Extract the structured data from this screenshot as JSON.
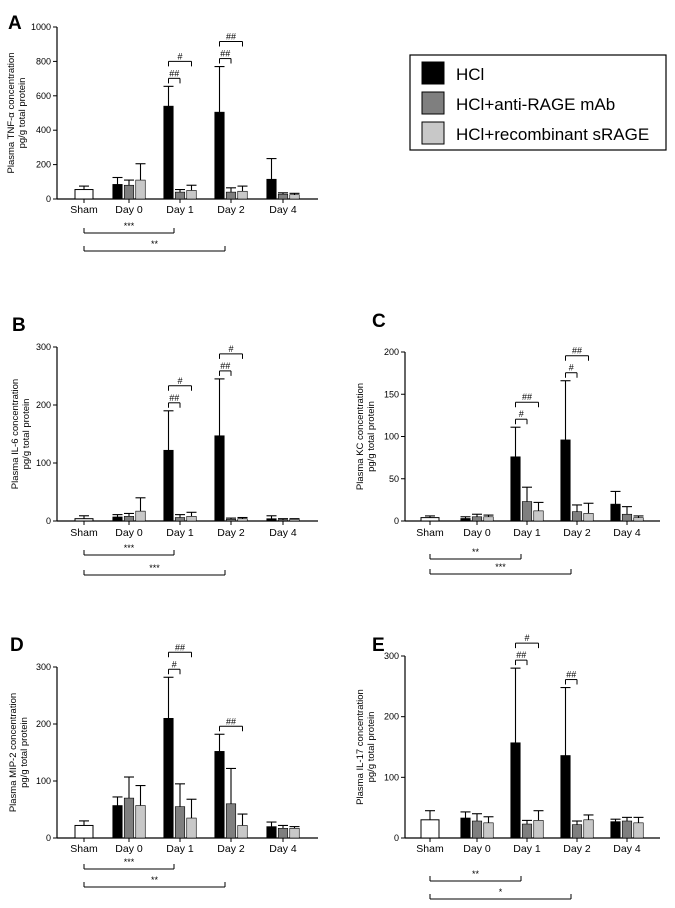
{
  "colors": {
    "HCl": "#000000",
    "HCl+anti-RAGE mAb": "#7f7f7f",
    "HCl+recombinant sRAGE": "#c8c8c8",
    "Sham": "#ffffff"
  },
  "legend": [
    "HCl",
    "HCl+anti-RAGE mAb",
    "HCl+recombinant sRAGE"
  ],
  "chart_data": [
    {
      "panel": "A",
      "type": "bar",
      "ylabel": [
        "Plasma TNF-α concentration",
        "pg/g total protein"
      ],
      "ylim": [
        0,
        1000
      ],
      "yticks": [
        0,
        200,
        400,
        600,
        800,
        1000
      ],
      "categories": [
        "Sham",
        "Day 0",
        "Day 1",
        "Day 2",
        "Day 4"
      ],
      "sham": {
        "value": 55,
        "error": 20
      },
      "series": [
        {
          "name": "HCl",
          "values": [
            null,
            85,
            540,
            505,
            115
          ],
          "errors": [
            null,
            40,
            115,
            265,
            120
          ]
        },
        {
          "name": "HCl+anti-RAGE mAb",
          "values": [
            null,
            80,
            40,
            40,
            28
          ],
          "errors": [
            null,
            30,
            15,
            25,
            8
          ]
        },
        {
          "name": "HCl+recombinant sRAGE",
          "values": [
            null,
            110,
            50,
            45,
            25
          ],
          "errors": [
            null,
            95,
            30,
            30,
            8
          ]
        }
      ],
      "hash_brackets": [
        {
          "day": "Day 1",
          "to": "HCl+anti-RAGE mAb",
          "label": "##",
          "level": 1
        },
        {
          "day": "Day 1",
          "to": "HCl+recombinant sRAGE",
          "label": "#",
          "level": 2
        },
        {
          "day": "Day 2",
          "to": "HCl+anti-RAGE mAb",
          "label": "##",
          "level": 1
        },
        {
          "day": "Day 2",
          "to": "HCl+recombinant sRAGE",
          "label": "##",
          "level": 2
        }
      ],
      "sham_brackets": [
        {
          "to": "Day 1",
          "label": "***"
        },
        {
          "to": "Day 2",
          "label": "**"
        }
      ]
    },
    {
      "panel": "B",
      "type": "bar",
      "ylabel": [
        "Plasma IL-6 concentration",
        "pg/g total protein"
      ],
      "ylim": [
        0,
        300
      ],
      "yticks": [
        0,
        100,
        200,
        300
      ],
      "categories": [
        "Sham",
        "Day 0",
        "Day 1",
        "Day 2",
        "Day 4"
      ],
      "sham": {
        "value": 4,
        "error": 5
      },
      "series": [
        {
          "name": "HCl",
          "values": [
            null,
            7,
            122,
            147,
            4
          ],
          "errors": [
            null,
            4,
            68,
            98,
            5
          ]
        },
        {
          "name": "HCl+anti-RAGE mAb",
          "values": [
            null,
            8,
            6,
            3,
            2
          ],
          "errors": [
            null,
            5,
            5,
            2,
            2
          ]
        },
        {
          "name": "HCl+recombinant sRAGE",
          "values": [
            null,
            17,
            8,
            4,
            3
          ],
          "errors": [
            null,
            23,
            7,
            2,
            1
          ]
        }
      ],
      "hash_brackets": [
        {
          "day": "Day 1",
          "to": "HCl+anti-RAGE mAb",
          "label": "##",
          "level": 1
        },
        {
          "day": "Day 1",
          "to": "HCl+recombinant sRAGE",
          "label": "#",
          "level": 2
        },
        {
          "day": "Day 2",
          "to": "HCl+anti-RAGE mAb",
          "label": "##",
          "level": 1
        },
        {
          "day": "Day 2",
          "to": "HCl+recombinant sRAGE",
          "label": "#",
          "level": 2
        }
      ],
      "sham_brackets": [
        {
          "to": "Day 1",
          "label": "***"
        },
        {
          "to": "Day 2",
          "label": "***"
        }
      ]
    },
    {
      "panel": "C",
      "type": "bar",
      "ylabel": [
        "Plasma KC concentration",
        "pg/g total protein"
      ],
      "ylim": [
        0,
        200
      ],
      "yticks": [
        0,
        50,
        100,
        150,
        200
      ],
      "categories": [
        "Sham",
        "Day 0",
        "Day 1",
        "Day 2",
        "Day 4"
      ],
      "sham": {
        "value": 4,
        "error": 2
      },
      "series": [
        {
          "name": "HCl",
          "values": [
            null,
            3,
            76,
            96,
            20
          ],
          "errors": [
            null,
            2,
            35,
            70,
            15
          ]
        },
        {
          "name": "HCl+anti-RAGE mAb",
          "values": [
            null,
            5,
            23,
            11,
            8
          ],
          "errors": [
            null,
            3,
            17,
            8,
            9
          ]
        },
        {
          "name": "HCl+recombinant sRAGE",
          "values": [
            null,
            5,
            12,
            9,
            4
          ],
          "errors": [
            null,
            2,
            10,
            12,
            2
          ]
        }
      ],
      "hash_brackets": [
        {
          "day": "Day 1",
          "to": "HCl+anti-RAGE mAb",
          "label": "#",
          "level": 1
        },
        {
          "day": "Day 1",
          "to": "HCl+recombinant sRAGE",
          "label": "##",
          "level": 2
        },
        {
          "day": "Day 2",
          "to": "HCl+anti-RAGE mAb",
          "label": "#",
          "level": 1
        },
        {
          "day": "Day 2",
          "to": "HCl+recombinant sRAGE",
          "label": "##",
          "level": 2
        }
      ],
      "sham_brackets": [
        {
          "to": "Day 1",
          "label": "**"
        },
        {
          "to": "Day 2",
          "label": "***"
        }
      ]
    },
    {
      "panel": "D",
      "type": "bar",
      "ylabel": [
        "Plasma MIP-2 concentration",
        "pg/g total protein"
      ],
      "ylim": [
        0,
        300
      ],
      "yticks": [
        0,
        100,
        200,
        300
      ],
      "categories": [
        "Sham",
        "Day 0",
        "Day 1",
        "Day 2",
        "Day 4"
      ],
      "sham": {
        "value": 22,
        "error": 8
      },
      "series": [
        {
          "name": "HCl",
          "values": [
            null,
            57,
            210,
            152,
            20
          ],
          "errors": [
            null,
            15,
            72,
            30,
            8
          ]
        },
        {
          "name": "HCl+anti-RAGE mAb",
          "values": [
            null,
            70,
            55,
            60,
            17
          ],
          "errors": [
            null,
            37,
            40,
            62,
            5
          ]
        },
        {
          "name": "HCl+recombinant sRAGE",
          "values": [
            null,
            57,
            35,
            22,
            17
          ],
          "errors": [
            null,
            35,
            33,
            20,
            3
          ]
        }
      ],
      "hash_brackets": [
        {
          "day": "Day 1",
          "to": "HCl+anti-RAGE mAb",
          "label": "#",
          "level": 1
        },
        {
          "day": "Day 1",
          "to": "HCl+recombinant sRAGE",
          "label": "##",
          "level": 2
        },
        {
          "day": "Day 2",
          "to": "HCl+recombinant sRAGE",
          "label": "##",
          "level": 1
        }
      ],
      "sham_brackets": [
        {
          "to": "Day 1",
          "label": "***"
        },
        {
          "to": "Day 2",
          "label": "**"
        }
      ]
    },
    {
      "panel": "E",
      "type": "bar",
      "ylabel": [
        "Plasma IL-17 concentration",
        "pg/g total protein"
      ],
      "ylim": [
        0,
        300
      ],
      "yticks": [
        0,
        100,
        200,
        300
      ],
      "categories": [
        "Sham",
        "Day 0",
        "Day 1",
        "Day 2",
        "Day 4"
      ],
      "sham": {
        "value": 30,
        "error": 15
      },
      "series": [
        {
          "name": "HCl",
          "values": [
            null,
            33,
            157,
            136,
            27
          ],
          "errors": [
            null,
            10,
            123,
            112,
            4
          ]
        },
        {
          "name": "HCl+anti-RAGE mAb",
          "values": [
            null,
            28,
            23,
            22,
            28
          ],
          "errors": [
            null,
            12,
            6,
            6,
            6
          ]
        },
        {
          "name": "HCl+recombinant sRAGE",
          "values": [
            null,
            25,
            29,
            30,
            25
          ],
          "errors": [
            null,
            10,
            16,
            8,
            9
          ]
        }
      ],
      "hash_brackets": [
        {
          "day": "Day 1",
          "to": "HCl+anti-RAGE mAb",
          "label": "##",
          "level": 1
        },
        {
          "day": "Day 1",
          "to": "HCl+recombinant sRAGE",
          "label": "#",
          "level": 2
        },
        {
          "day": "Day 2",
          "to": "HCl+anti-RAGE mAb",
          "label": "##",
          "level": 1
        }
      ],
      "sham_brackets": [
        {
          "to": "Day 1",
          "label": "**"
        },
        {
          "to": "Day 2",
          "label": "*"
        }
      ]
    }
  ]
}
